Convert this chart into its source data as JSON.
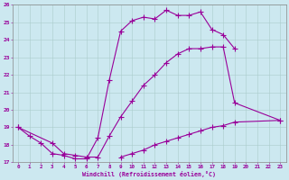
{
  "xlabel": "Windchill (Refroidissement éolien,°C)",
  "bg_color": "#cce8f0",
  "line_color": "#990099",
  "grid_color": "#aacccc",
  "xlim": [
    -0.5,
    23.5
  ],
  "ylim": [
    17,
    26
  ],
  "yticks": [
    17,
    18,
    19,
    20,
    21,
    22,
    23,
    24,
    25,
    26
  ],
  "xticks": [
    0,
    1,
    2,
    3,
    4,
    5,
    6,
    7,
    8,
    9,
    10,
    11,
    12,
    13,
    14,
    15,
    16,
    17,
    18,
    19,
    20,
    21,
    22,
    23
  ],
  "series1_x": [
    0,
    1,
    2,
    3,
    4,
    5,
    6,
    7,
    8,
    9,
    10,
    11,
    12,
    13,
    14,
    15,
    16,
    17,
    18,
    19
  ],
  "series1_y": [
    19.0,
    18.5,
    18.1,
    17.5,
    17.4,
    17.2,
    17.2,
    18.4,
    21.7,
    24.5,
    25.1,
    25.3,
    25.2,
    25.7,
    25.4,
    25.4,
    25.6,
    24.6,
    24.3,
    23.5
  ],
  "series2_x": [
    0,
    3,
    4,
    5,
    6,
    7,
    8,
    9,
    10,
    11,
    12,
    13,
    14,
    15,
    16,
    17,
    18,
    19,
    23
  ],
  "series2_y": [
    19.0,
    18.1,
    17.5,
    17.4,
    17.3,
    17.3,
    18.5,
    19.6,
    20.5,
    21.4,
    22.0,
    22.7,
    23.2,
    23.5,
    23.5,
    23.6,
    23.6,
    20.4,
    19.4
  ],
  "series3_x": [
    9,
    10,
    11,
    12,
    13,
    14,
    15,
    16,
    17,
    18,
    19,
    23
  ],
  "series3_y": [
    17.3,
    17.5,
    17.7,
    18.0,
    18.2,
    18.4,
    18.6,
    18.8,
    19.0,
    19.1,
    19.3,
    19.4
  ]
}
